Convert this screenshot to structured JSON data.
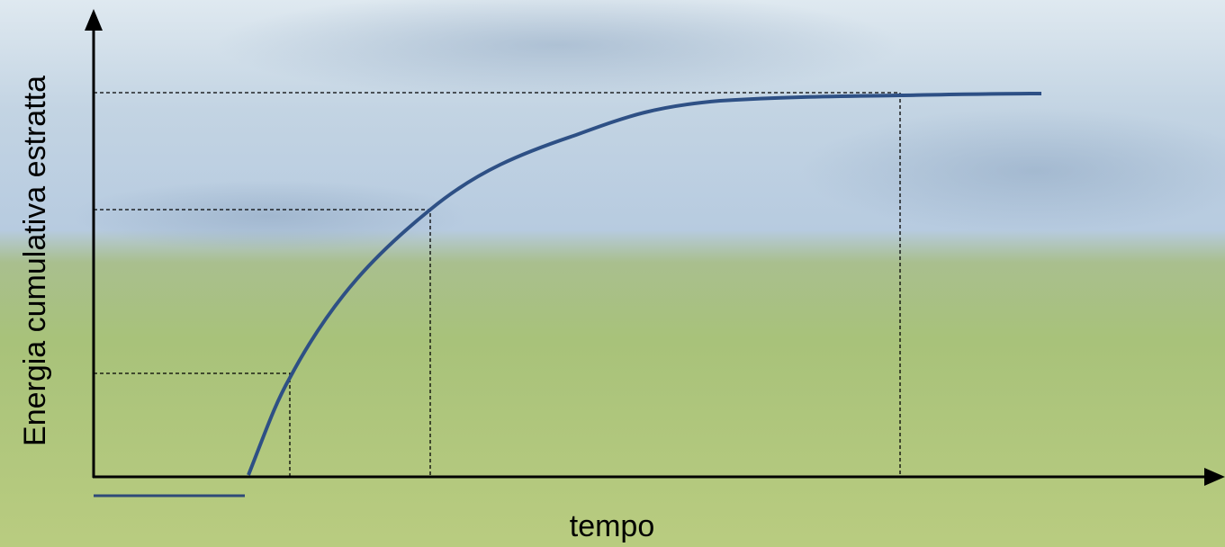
{
  "y_axis": {
    "label": "Energia cumulativa estratta"
  },
  "x_axis": {
    "label": "tempo"
  }
}
